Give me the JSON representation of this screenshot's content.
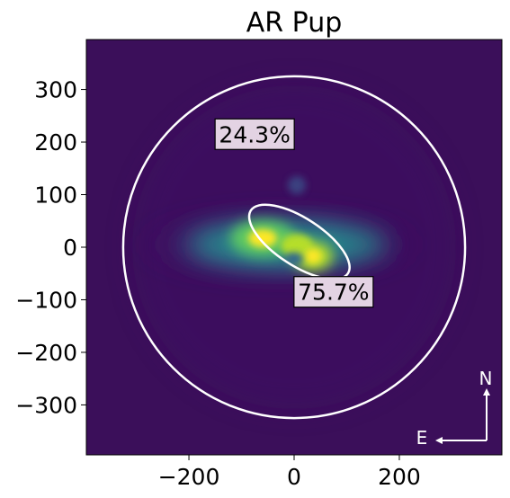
{
  "chart_data": {
    "type": "heatmap",
    "title": "AR Pup",
    "xlabel": "",
    "ylabel": "",
    "xlim": [
      -395,
      395
    ],
    "ylim": [
      -395,
      395
    ],
    "x_ticks": [
      -200,
      0,
      200
    ],
    "x_tick_labels": [
      "−200",
      "0",
      "200"
    ],
    "y_ticks": [
      300,
      200,
      100,
      0,
      -100,
      -200,
      -300
    ],
    "y_tick_labels": [
      "300",
      "200",
      "100",
      "0",
      "−100",
      "−200",
      "−300"
    ],
    "grid": false,
    "colormap": "viridis",
    "colors": {
      "background": "#3b0f5a",
      "contour": "#ffffff",
      "annotation_box": "#e3d3e3"
    },
    "contours": [
      {
        "shape": "circle",
        "center": [
          0,
          0
        ],
        "radius": 325
      },
      {
        "shape": "ellipse",
        "center": [
          10,
          10
        ],
        "semi_major": 110,
        "semi_minor": 45,
        "angle_deg": -33
      }
    ],
    "annotations": [
      {
        "text": "24.3%",
        "x": -75,
        "y": 215
      },
      {
        "text": "75.7%",
        "x": 75,
        "y": -85
      }
    ],
    "compass": {
      "north_label": "N",
      "east_label": "E"
    }
  }
}
